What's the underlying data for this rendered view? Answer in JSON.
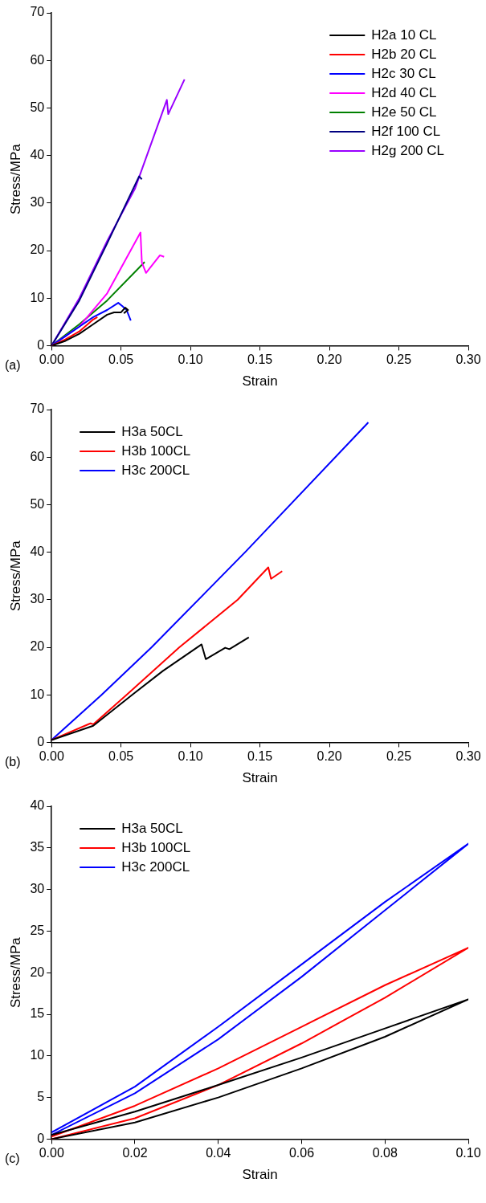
{
  "chart_data": [
    {
      "type": "line",
      "xlabel": "Strain",
      "ylabel": "Stress/MPa",
      "annotations": [
        "(a)"
      ],
      "legend": "top right",
      "marker": "none",
      "line_style": "solid",
      "grid": false,
      "xlim": [
        0,
        0.3
      ],
      "xticks": [
        {
          "value": 0,
          "label": "0.00"
        },
        {
          "value": 0.05,
          "label": "0.05"
        },
        {
          "value": 0.1,
          "label": "0.10"
        },
        {
          "value": 0.15,
          "label": "0.15"
        },
        {
          "value": 0.2,
          "label": "0.20"
        },
        {
          "value": 0.25,
          "label": "0.25"
        },
        {
          "value": 0.3,
          "label": "0.30"
        }
      ],
      "ylim": [
        0,
        70
      ],
      "yticks": [
        0,
        10,
        20,
        30,
        40,
        50,
        60,
        70
      ],
      "series": [
        {
          "name": "H2a 10 CL",
          "color": "#000000",
          "x": [
            0,
            0.01,
            0.02,
            0.03,
            0.04,
            0.045,
            0.05,
            0.053,
            0.055,
            0.052
          ],
          "values": [
            0,
            1,
            2.5,
            4.5,
            6.5,
            7,
            7,
            8,
            7.5,
            6.8
          ]
        },
        {
          "name": "H2b 20 CL",
          "color": "#ff0000",
          "x": [
            0,
            0.01,
            0.02,
            0.03,
            0.033
          ],
          "values": [
            0,
            1.3,
            3,
            5.5,
            6
          ]
        },
        {
          "name": "H2c 30 CL",
          "color": "#0000ff",
          "x": [
            0,
            0.01,
            0.02,
            0.03,
            0.04,
            0.048,
            0.051,
            0.054,
            0.057
          ],
          "values": [
            0,
            2,
            4,
            6,
            7.5,
            9,
            8.3,
            7.5,
            5.3
          ]
        },
        {
          "name": "H2d 40 CL",
          "color": "#ff00ff",
          "x": [
            0,
            0.02,
            0.04,
            0.064,
            0.065,
            0.068,
            0.078,
            0.081
          ],
          "values": [
            0,
            4,
            11,
            23.8,
            17.5,
            15.3,
            19,
            18.7
          ]
        },
        {
          "name": "H2e 50 CL",
          "color": "#008000",
          "x": [
            0,
            0.02,
            0.04,
            0.067
          ],
          "values": [
            0,
            4.5,
            9.5,
            17.6
          ]
        },
        {
          "name": "H2f 100 CL",
          "color": "#000080",
          "x": [
            0,
            0.02,
            0.04,
            0.063,
            0.065
          ],
          "values": [
            0,
            9.5,
            21.5,
            35.6,
            35
          ]
        },
        {
          "name": "H2g 200 CL",
          "color": "#9900ff",
          "x": [
            0,
            0.02,
            0.04,
            0.06,
            0.083,
            0.084,
            0.0957
          ],
          "values": [
            0,
            10,
            22,
            33,
            51.7,
            48.7,
            56
          ]
        }
      ]
    },
    {
      "type": "line",
      "xlabel": "Strain",
      "ylabel": "Stress/MPa",
      "annotations": [
        "(b)"
      ],
      "legend": "top left",
      "marker": "none",
      "line_style": "solid",
      "grid": false,
      "xlim": [
        0,
        0.3
      ],
      "xticks": [
        {
          "value": 0,
          "label": "0.00"
        },
        {
          "value": 0.05,
          "label": "0.05"
        },
        {
          "value": 0.1,
          "label": "0.10"
        },
        {
          "value": 0.15,
          "label": "0.15"
        },
        {
          "value": 0.2,
          "label": "0.20"
        },
        {
          "value": 0.25,
          "label": "0.25"
        },
        {
          "value": 0.3,
          "label": "0.30"
        }
      ],
      "ylim": [
        0,
        70
      ],
      "yticks": [
        0,
        10,
        20,
        30,
        40,
        50,
        60,
        70
      ],
      "series": [
        {
          "name": "H3a 50CL",
          "color": "#000000",
          "x": [
            0,
            0.03,
            0.058,
            0.08,
            0.108,
            0.111,
            0.125,
            0.128,
            0.142
          ],
          "values": [
            0.5,
            3.5,
            10,
            15,
            20.6,
            17.5,
            19.9,
            19.6,
            22.1
          ]
        },
        {
          "name": "H3b 100CL",
          "color": "#ff0000",
          "x": [
            0,
            0.028,
            0.03,
            0.054,
            0.092,
            0.134,
            0.156,
            0.158,
            0.166
          ],
          "values": [
            0.5,
            4,
            3.8,
            10,
            20,
            30,
            36.8,
            34.4,
            36
          ]
        },
        {
          "name": "H3c 200CL",
          "color": "#0000ff",
          "x": [
            0,
            0.036,
            0.072,
            0.14,
            0.228
          ],
          "values": [
            0.5,
            10,
            20,
            40.2,
            67.3
          ]
        }
      ]
    },
    {
      "type": "line",
      "xlabel": "Strain",
      "ylabel": "Stress/MPa",
      "annotations": [
        "(c)"
      ],
      "legend": "top left",
      "marker": "none",
      "line_style": "solid",
      "grid": false,
      "xlim": [
        0,
        0.1
      ],
      "xticks": [
        {
          "value": 0,
          "label": "0.00"
        },
        {
          "value": 0.02,
          "label": "0.02"
        },
        {
          "value": 0.04,
          "label": "0.04"
        },
        {
          "value": 0.06,
          "label": "0.06"
        },
        {
          "value": 0.08,
          "label": "0.08"
        },
        {
          "value": 0.1,
          "label": "0.10"
        }
      ],
      "ylim": [
        0,
        40
      ],
      "yticks": [
        0,
        5,
        10,
        15,
        20,
        25,
        30,
        35,
        40
      ],
      "series": [
        {
          "name": "H3a 50CL",
          "color": "#000000",
          "x": [
            0,
            0.02,
            0.04,
            0.06,
            0.08,
            0.1,
            0.08,
            0.06,
            0.04,
            0.02,
            0
          ],
          "values": [
            0,
            2,
            5,
            8.5,
            12.3,
            16.8,
            13.3,
            9.8,
            6.5,
            3.3,
            0.5
          ]
        },
        {
          "name": "H3b 100CL",
          "color": "#ff0000",
          "x": [
            0,
            0.02,
            0.04,
            0.06,
            0.08,
            0.1,
            0.08,
            0.06,
            0.04,
            0.02,
            0
          ],
          "values": [
            0,
            2.5,
            6.5,
            11.5,
            17,
            23,
            18.5,
            13.5,
            8.5,
            4,
            0.3
          ]
        },
        {
          "name": "H3c 200CL",
          "color": "#0000ff",
          "x": [
            0,
            0.02,
            0.04,
            0.06,
            0.08,
            0.1,
            0.08,
            0.06,
            0.04,
            0.02,
            0
          ],
          "values": [
            0.5,
            5.5,
            12,
            19.5,
            27.5,
            35.5,
            28.5,
            21,
            13.5,
            6.3,
            0.8
          ]
        }
      ]
    }
  ]
}
